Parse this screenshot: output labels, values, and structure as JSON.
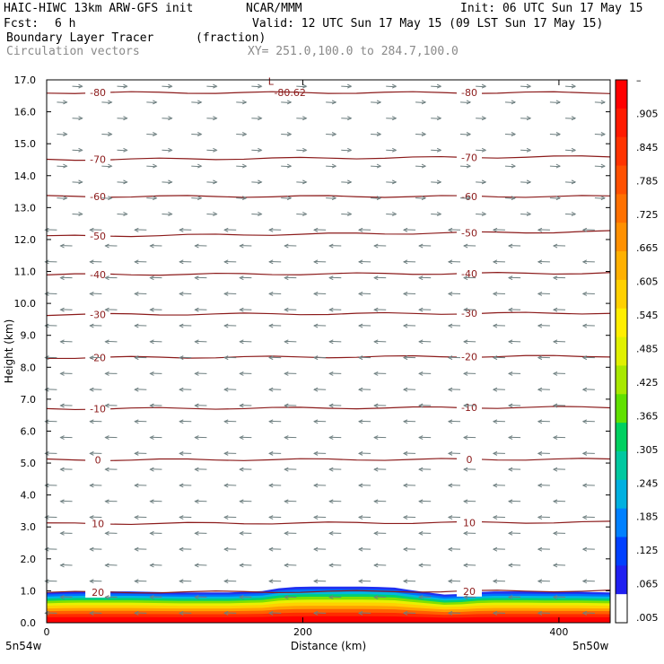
{
  "header": {
    "model": "HAIC-HIWC 13km ARW-GFS init",
    "org": "NCAR/MMM",
    "init": "Init: 06 UTC Sun 17 May 15",
    "fcst_label": "Fcst:",
    "fcst_value": "6 h",
    "valid": "Valid: 12 UTC Sun 17 May 15 (09 LST Sun 17 May 15)",
    "field": "Boundary Layer Tracer",
    "units": "(fraction)",
    "vectors": "Circulation vectors",
    "xy": "XY= 251.0,100.0 to 284.7,100.0"
  },
  "chart_data": {
    "type": "heatmap",
    "xlabel": "Distance (km)",
    "ylabel": "Height (km)",
    "xlim": [
      0,
      440
    ],
    "ylim": [
      0,
      17
    ],
    "xticks": [
      0,
      200,
      400
    ],
    "xtick_labels": [
      "0",
      "200",
      "400"
    ],
    "yticks": [
      0,
      1,
      2,
      3,
      4,
      5,
      6,
      7,
      8,
      9,
      10,
      11,
      12,
      13,
      14,
      15,
      16,
      17
    ],
    "ytick_labels": [
      "0.0",
      "1.0",
      "2.0",
      "3.0",
      "4.0",
      "5.0",
      "6.0",
      "7.0",
      "8.0",
      "9.0",
      "10.0",
      "11.0",
      "12.0",
      "13.0",
      "14.0",
      "15.0",
      "16.0",
      "17.0"
    ],
    "x_end_labels": [
      "5n54w",
      "5n50w"
    ],
    "colorbar": {
      "labels": [
        "–",
        ".905",
        ".845",
        ".785",
        ".725",
        ".665",
        ".605",
        ".545",
        ".485",
        ".425",
        ".365",
        ".305",
        ".245",
        ".185",
        ".125",
        ".065",
        ".005"
      ],
      "colors": [
        "#ff0000",
        "#ff1a00",
        "#ff3300",
        "#ff5000",
        "#ff7000",
        "#ff9000",
        "#ffb000",
        "#ffd000",
        "#ffee00",
        "#e0f000",
        "#a8e800",
        "#60e000",
        "#00d060",
        "#00c8a0",
        "#00b0e0",
        "#0080ff",
        "#0040ff",
        "#2020f0",
        "#ffffff"
      ]
    },
    "boundary_layer_top_km": [
      0.95,
      0.97,
      0.98,
      0.98,
      0.98,
      0.98,
      0.97,
      0.96,
      0.95,
      0.95,
      0.95,
      0.95,
      0.97,
      0.99,
      1.08,
      1.12,
      1.13,
      1.13,
      1.13,
      1.13,
      1.12,
      1.1,
      1.02,
      0.95,
      0.88,
      0.9,
      0.96,
      0.98,
      0.98,
      0.98,
      0.97,
      0.97,
      0.97,
      0.96,
      0.95
    ],
    "temperature_contours": [
      {
        "label": "20",
        "heights_km": [
          0.95,
          1.0
        ]
      },
      {
        "label": "10",
        "heights_km": [
          3.1,
          3.15
        ]
      },
      {
        "label": "0",
        "heights_km": [
          5.1,
          5.12
        ]
      },
      {
        "label": "-10",
        "heights_km": [
          6.7,
          6.75
        ]
      },
      {
        "label": "-20",
        "heights_km": [
          8.3,
          8.35
        ]
      },
      {
        "label": "-30",
        "heights_km": [
          9.65,
          9.7
        ]
      },
      {
        "label": "-40",
        "heights_km": [
          10.9,
          10.95
        ]
      },
      {
        "label": "-50",
        "heights_km": [
          12.1,
          12.25
        ]
      },
      {
        "label": "-60",
        "heights_km": [
          13.35,
          13.35
        ]
      },
      {
        "label": "-70",
        "heights_km": [
          14.5,
          14.6
        ]
      },
      {
        "label": "-80",
        "heights_km": [
          16.6,
          16.6
        ]
      }
    ],
    "min_label": "L",
    "min_value": "-80.62",
    "wind_u_direction": {
      "above_km": 12.5,
      "upper": "east",
      "lower": "west"
    }
  }
}
